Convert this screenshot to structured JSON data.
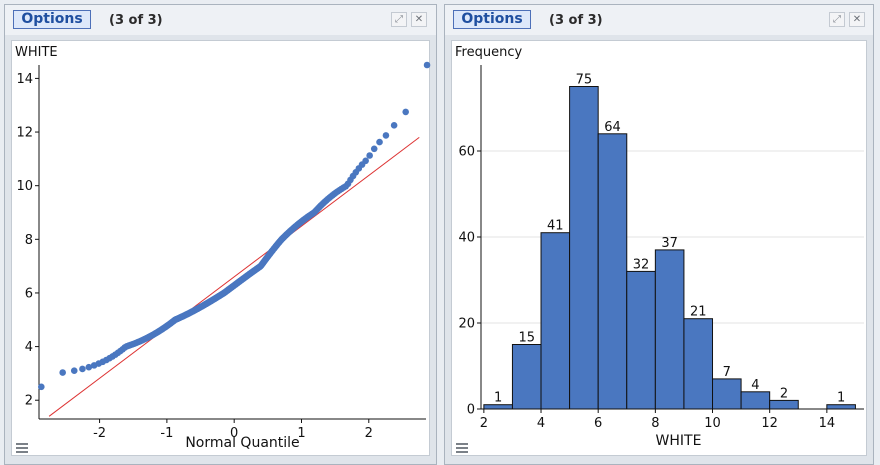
{
  "panels": [
    {
      "options_label": "Options",
      "page_count": "(3 of 3)",
      "chart_data": {
        "type": "scatter",
        "subtype": "normal-quantile-plot",
        "xlabel": "Normal Quantile",
        "ylabel": "WHITE",
        "xlim": [
          -2.9,
          2.85
        ],
        "ylim": [
          1.3,
          14.5
        ],
        "xticks": [
          -2,
          -1,
          0,
          1,
          2
        ],
        "yticks": [
          2,
          4,
          6,
          8,
          10,
          12,
          14
        ],
        "grid": false,
        "reference_line": {
          "color": "#dd3333",
          "from": [
            -2.75,
            1.4
          ],
          "to": [
            2.75,
            11.8
          ]
        },
        "point_color": "#4a77c0"
      }
    },
    {
      "options_label": "Options",
      "page_count": "(3 of 3)",
      "chart_data": {
        "type": "bar",
        "subtype": "histogram",
        "ylabel": "Frequency",
        "xlabel": "WHITE",
        "bin_edges": [
          2,
          3,
          4,
          5,
          6,
          7,
          8,
          9,
          10,
          11,
          12,
          13,
          14,
          15
        ],
        "values": [
          1,
          15,
          41,
          75,
          64,
          32,
          37,
          21,
          7,
          4,
          2,
          0,
          1
        ],
        "data_labels": [
          "1",
          "15",
          "41",
          "75",
          "64",
          "32",
          "37",
          "21",
          "7",
          "4",
          "2",
          "",
          "1"
        ],
        "xlim": [
          1.9,
          15.3
        ],
        "ylim": [
          0,
          80
        ],
        "xticks": [
          2,
          4,
          6,
          8,
          10,
          12,
          14
        ],
        "yticks": [
          0,
          20,
          40,
          60
        ],
        "grid": true,
        "bar_color": "#4a77c0"
      }
    }
  ],
  "icons": {
    "expand": "expand-icon",
    "close": "close-icon",
    "menu": "hamburger-menu-icon"
  }
}
